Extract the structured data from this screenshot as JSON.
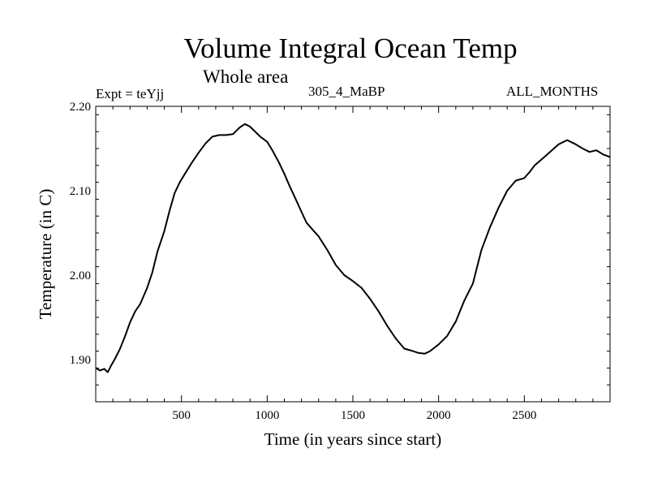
{
  "chart_data": {
    "type": "line",
    "title": "Volume Integral Ocean Temp",
    "subtitle": "Whole area",
    "annotations": {
      "experiment": "Expt = teYjj",
      "period": "305_4_MaBP",
      "months": "ALL_MONTHS"
    },
    "xlabel": "Time (in years since start)",
    "ylabel": "Temperature (in C)",
    "xlim": [
      0,
      3000
    ],
    "ylim": [
      1.85,
      2.2
    ],
    "xticks": [
      500,
      1000,
      1500,
      2000,
      2500
    ],
    "xtick_labels": [
      "500",
      "1000",
      "1500",
      "2000",
      "2500"
    ],
    "yticks": [
      1.9,
      2.0,
      2.1,
      2.2
    ],
    "ytick_labels": [
      "1.90",
      "2.00",
      "2.10",
      "2.20"
    ],
    "grid": false,
    "series": [
      {
        "name": "Volume integral ocean temperature",
        "x": [
          0,
          25,
          50,
          70,
          90,
          110,
          140,
          170,
          200,
          230,
          260,
          300,
          330,
          360,
          400,
          430,
          460,
          490,
          520,
          560,
          600,
          640,
          680,
          720,
          760,
          800,
          840,
          870,
          900,
          930,
          960,
          1000,
          1030,
          1070,
          1100,
          1130,
          1160,
          1200,
          1230,
          1260,
          1300,
          1350,
          1400,
          1450,
          1500,
          1550,
          1600,
          1650,
          1700,
          1750,
          1800,
          1850,
          1880,
          1920,
          1950,
          2000,
          2050,
          2100,
          2150,
          2200,
          2250,
          2300,
          2350,
          2400,
          2450,
          2500,
          2530,
          2560,
          2600,
          2650,
          2700,
          2750,
          2800,
          2840,
          2880,
          2920,
          2960,
          3000
        ],
        "values": [
          1.89,
          1.887,
          1.889,
          1.885,
          1.893,
          1.9,
          1.912,
          1.927,
          1.944,
          1.957,
          1.966,
          1.985,
          2.003,
          2.028,
          2.052,
          2.076,
          2.097,
          2.11,
          2.12,
          2.133,
          2.145,
          2.156,
          2.164,
          2.166,
          2.166,
          2.167,
          2.175,
          2.179,
          2.176,
          2.17,
          2.164,
          2.158,
          2.148,
          2.133,
          2.12,
          2.106,
          2.093,
          2.075,
          2.062,
          2.055,
          2.046,
          2.03,
          2.012,
          2.0,
          1.993,
          1.985,
          1.972,
          1.957,
          1.94,
          1.925,
          1.913,
          1.91,
          1.908,
          1.907,
          1.91,
          1.918,
          1.928,
          1.945,
          1.97,
          1.99,
          2.03,
          2.057,
          2.08,
          2.1,
          2.112,
          2.115,
          2.122,
          2.13,
          2.137,
          2.146,
          2.155,
          2.16,
          2.155,
          2.15,
          2.146,
          2.148,
          2.143,
          2.14
        ]
      }
    ]
  }
}
